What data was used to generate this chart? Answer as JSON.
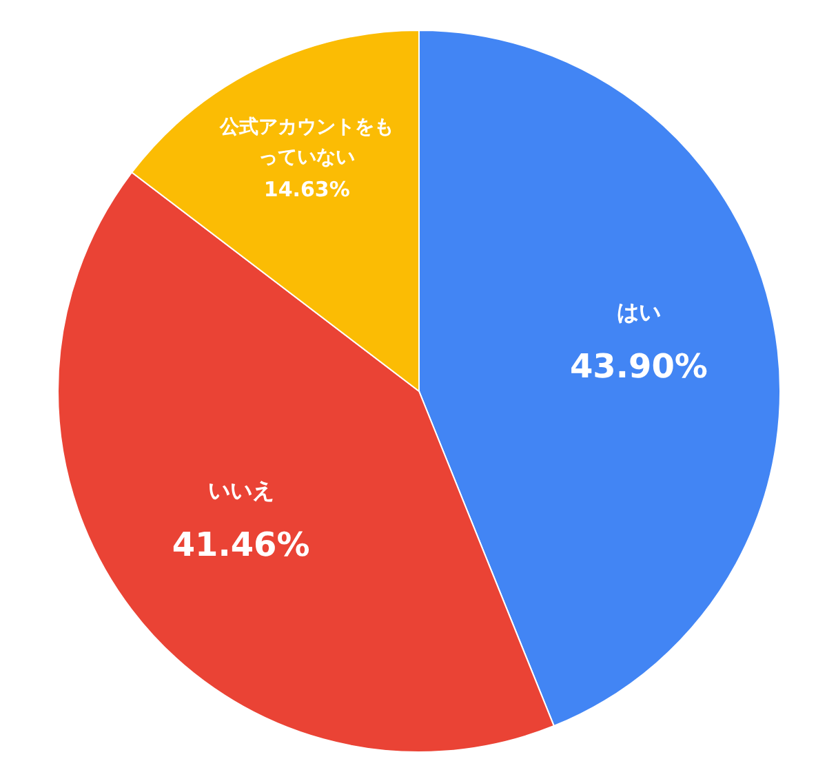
{
  "chart_data": {
    "type": "pie",
    "categories": [
      "はい",
      "いいえ",
      "公式アカウントをもっていない"
    ],
    "values": [
      43.9,
      41.46,
      14.63
    ],
    "colors": [
      "#4285f4",
      "#ea4335",
      "#fbbc04"
    ],
    "value_labels": [
      "43.90%",
      "41.46%",
      "14.63%"
    ]
  }
}
